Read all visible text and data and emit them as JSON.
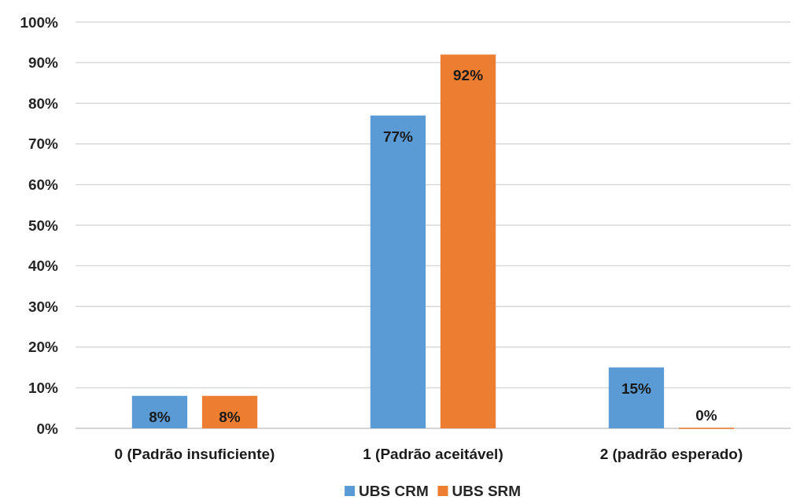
{
  "chart_data": {
    "type": "bar",
    "categories": [
      "0 (Padrão insuficiente)",
      "1 (Padrão aceitável)",
      "2 (padrão esperado)"
    ],
    "series": [
      {
        "name": "UBS CRM",
        "color": "#5b9bd5",
        "values": [
          8,
          77,
          15
        ],
        "value_labels": [
          "8%",
          "77%",
          "15%"
        ]
      },
      {
        "name": "UBS SRM",
        "color": "#ed7d31",
        "values": [
          8,
          92,
          0
        ],
        "value_labels": [
          "8%",
          "92%",
          "0%"
        ]
      }
    ],
    "ylim": [
      0,
      100
    ],
    "yticks": [
      {
        "value": 0,
        "label": "0%"
      },
      {
        "value": 10,
        "label": "10%"
      },
      {
        "value": 20,
        "label": "20%"
      },
      {
        "value": 30,
        "label": "30%"
      },
      {
        "value": 40,
        "label": "40%"
      },
      {
        "value": 50,
        "label": "50%"
      },
      {
        "value": 60,
        "label": "60%"
      },
      {
        "value": 70,
        "label": "70%"
      },
      {
        "value": 80,
        "label": "80%"
      },
      {
        "value": 90,
        "label": "90%"
      },
      {
        "value": 100,
        "label": "100%"
      }
    ],
    "grid": "y",
    "legend": "bottom"
  }
}
